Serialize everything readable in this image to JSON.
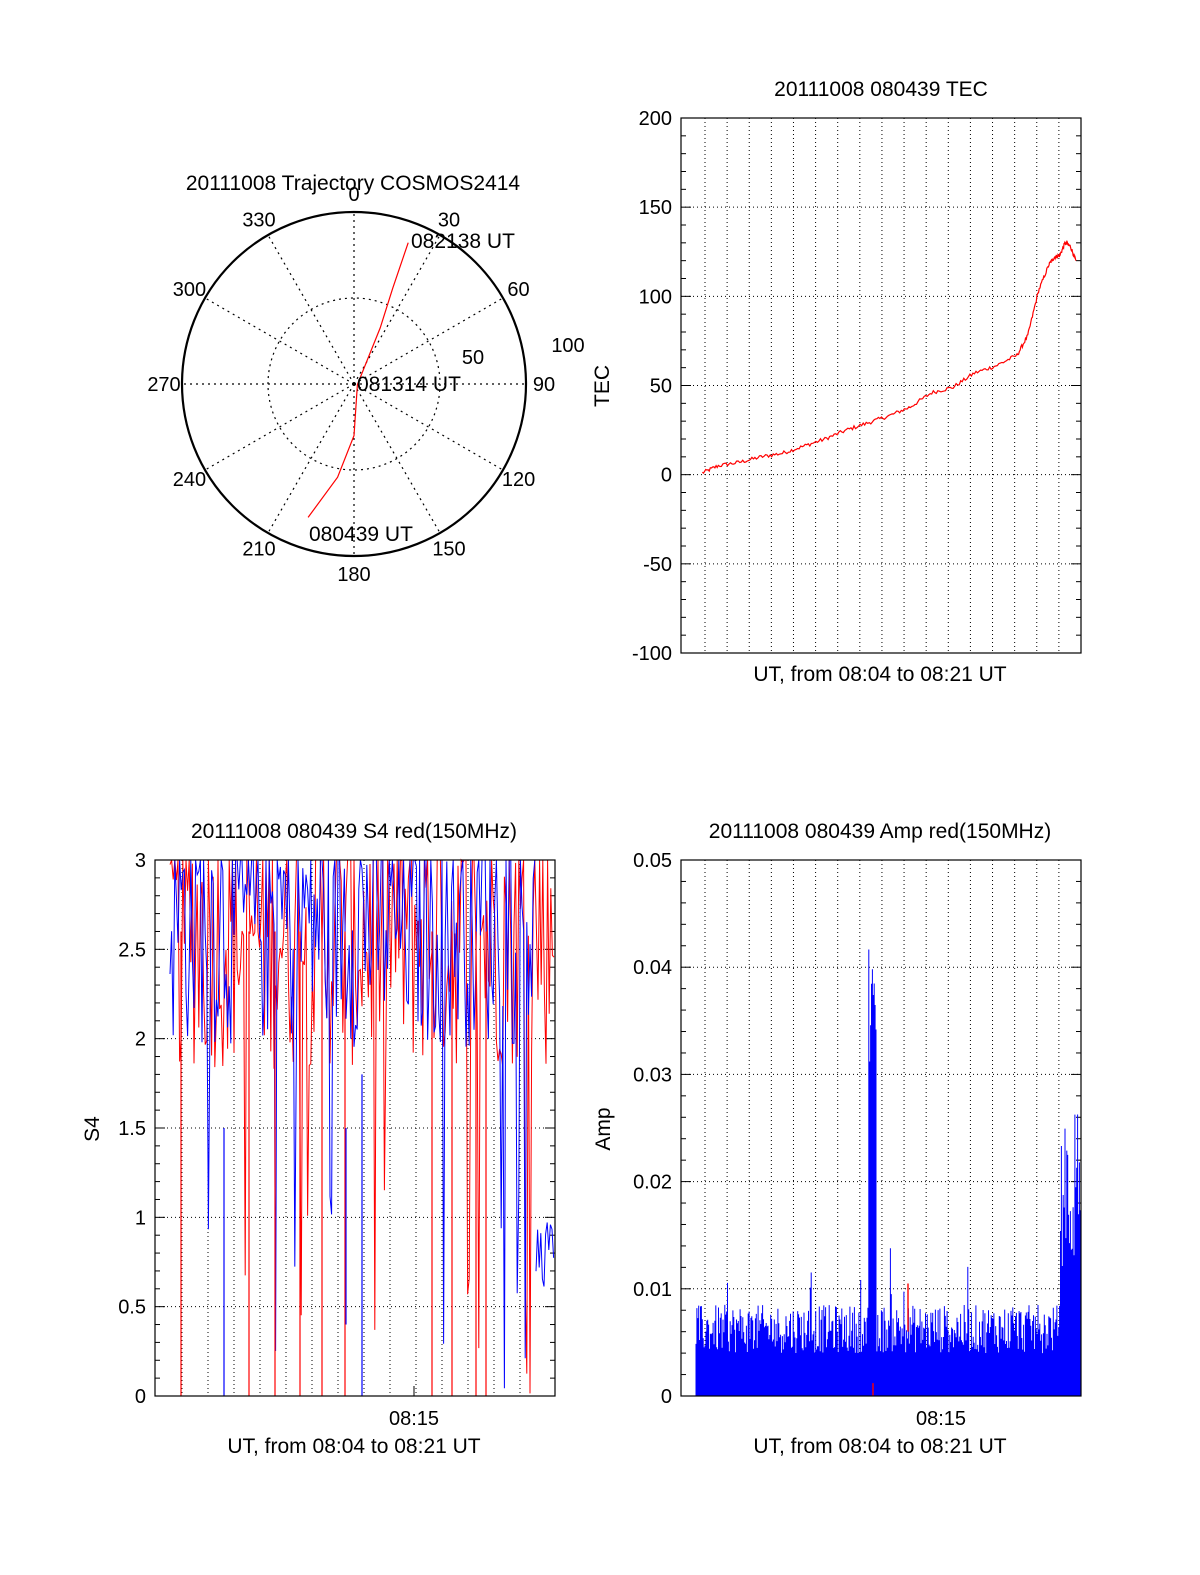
{
  "chart_data": [
    {
      "type": "polar",
      "title": "20111008 Trajectory COSMOS2414",
      "azimuth_labels": [
        "0",
        "30",
        "60",
        "90",
        "120",
        "150",
        "180",
        "210",
        "240",
        "270",
        "300",
        "330"
      ],
      "radial_labels": [
        "50",
        "100"
      ],
      "radial_max": 100,
      "radial_grid": [
        50
      ],
      "annotations": [
        "082138 UT",
        "081314 UT",
        "080439 UT"
      ],
      "track": [
        {
          "az": 199,
          "r": 82
        },
        {
          "az": 190,
          "r": 55
        },
        {
          "az": 180,
          "r": 30
        },
        {
          "az": 100,
          "r": 2
        },
        {
          "az": 25,
          "r": 36
        },
        {
          "az": 22,
          "r": 60
        },
        {
          "az": 21,
          "r": 88
        }
      ],
      "track_color": "#ff0000"
    },
    {
      "type": "line",
      "title": "20111008 080439 TEC",
      "xlabel": "UT, from 08:04 to 08:21 UT",
      "ylabel": "TEC",
      "ylim": [
        -100,
        200
      ],
      "yticks": [
        "-100",
        "-50",
        "0",
        "50",
        "100",
        "150",
        "200"
      ],
      "grid": true,
      "x_minutes_after_0804": [
        0.25,
        1,
        2,
        3,
        4,
        5,
        6,
        7,
        8,
        9,
        10,
        11,
        12,
        13,
        14,
        15,
        15.5,
        16,
        16.5,
        16.75,
        17,
        17.25,
        17.5,
        17.75
      ],
      "series": [
        {
          "values": [
            1,
            5,
            7,
            10,
            12,
            16,
            20,
            25,
            29,
            33,
            38,
            46,
            49,
            57,
            61,
            67,
            78,
            103,
            118,
            122,
            123,
            130,
            128,
            120
          ],
          "color": "#ff0000"
        }
      ]
    },
    {
      "type": "line",
      "title": "20111008 080439 S4 red(150MHz)",
      "xlabel": "UT, from 08:04 to 08:21 UT",
      "ylabel": "S4",
      "ylim": [
        0,
        3
      ],
      "yticks": [
        "0",
        "0.5",
        "1",
        "1.5",
        "2",
        "2.5",
        "3"
      ],
      "xticks": [
        "08:15"
      ],
      "grid": true,
      "series_colors": [
        "#ff0000",
        "#0000ff"
      ],
      "note": ""
    },
    {
      "type": "line",
      "title": "20111008 080439 Amp red(150MHz)",
      "xlabel": "UT, from 08:04 to 08:21 UT",
      "ylabel": "Amp",
      "ylim": [
        0,
        0.05
      ],
      "yticks": [
        "0",
        "0.01",
        "0.02",
        "0.03",
        "0.04",
        "0.05"
      ],
      "xticks": [
        "08:15"
      ],
      "grid": true,
      "series_colors": [
        "#ff0000",
        "#0000ff"
      ]
    }
  ]
}
